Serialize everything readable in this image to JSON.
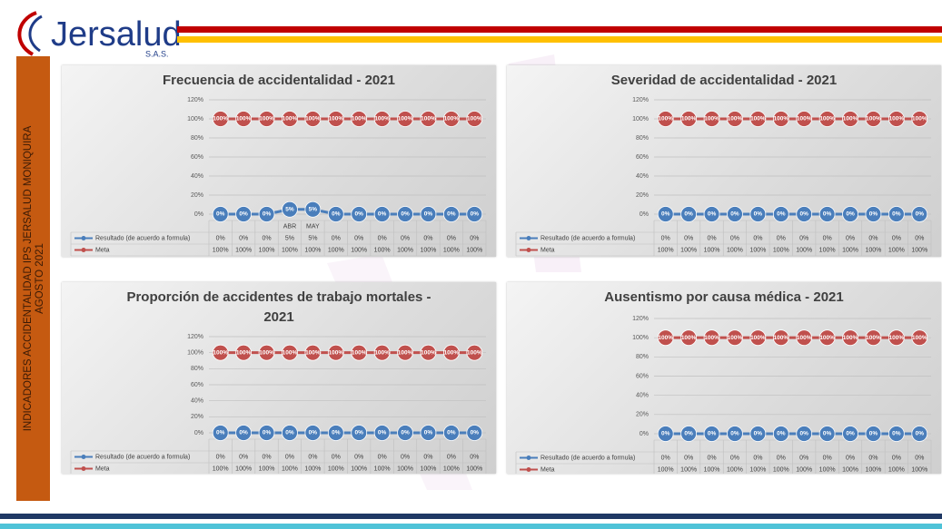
{
  "header": {
    "logo": "Jersalud",
    "logo_sub": "S.A.S.",
    "side_title": "INDICADORES ACCIDENTALIDAD IPS JERSALUD MONIQUIRA",
    "side_subtitle": "AGOSTO  2021"
  },
  "chart_data": [
    {
      "type": "line",
      "title": "Frecuencia de accidentalidad - 2021",
      "categories": [
        null,
        null,
        null,
        "ABR",
        "MAY",
        null,
        null,
        null,
        null,
        null,
        null,
        null
      ],
      "series": [
        {
          "name": "Resultado (de acuerdo a formula)",
          "color": "#4a7ebb",
          "values": [
            0,
            0,
            0,
            5,
            5,
            0,
            0,
            0,
            0,
            0,
            0,
            0
          ],
          "value_labels": [
            "0%",
            "0%",
            "0%",
            "5%",
            "5%",
            "0%",
            "0%",
            "0%",
            "0%",
            "0%",
            "0%",
            "0%"
          ]
        },
        {
          "name": "Meta",
          "color": "#c0504d",
          "values": [
            100,
            100,
            100,
            100,
            100,
            100,
            100,
            100,
            100,
            100,
            100,
            100
          ],
          "value_labels": [
            "100%",
            "100%",
            "100%",
            "100%",
            "100%",
            "100%",
            "100%",
            "100%",
            "100%",
            "100%",
            "100%",
            "100%"
          ]
        }
      ],
      "ylim": [
        0,
        120
      ],
      "yticks": [
        {
          "value": 0,
          "label": "0%"
        },
        {
          "value": 20,
          "label": "20%"
        },
        {
          "value": 40,
          "label": "40%"
        },
        {
          "value": 60,
          "label": "60%"
        },
        {
          "value": 80,
          "label": "80%"
        },
        {
          "value": 100,
          "label": "100%"
        },
        {
          "value": 120,
          "label": "120%"
        }
      ],
      "grid": true
    },
    {
      "type": "line",
      "title": "Severidad de accidentalidad - 2021",
      "categories": [
        null,
        null,
        null,
        null,
        null,
        null,
        null,
        null,
        null,
        null,
        null,
        null
      ],
      "series": [
        {
          "name": "Resultado (de acuerdo a formula)",
          "color": "#4a7ebb",
          "values": [
            0,
            0,
            0,
            0,
            0,
            0,
            0,
            0,
            0,
            0,
            0,
            0
          ],
          "value_labels": [
            "0%",
            "0%",
            "0%",
            "0%",
            "0%",
            "0%",
            "0%",
            "0%",
            "0%",
            "0%",
            "0%",
            "0%"
          ]
        },
        {
          "name": "Meta",
          "color": "#c0504d",
          "values": [
            100,
            100,
            100,
            100,
            100,
            100,
            100,
            100,
            100,
            100,
            100,
            100
          ],
          "value_labels": [
            "100%",
            "100%",
            "100%",
            "100%",
            "100%",
            "100%",
            "100%",
            "100%",
            "100%",
            "100%",
            "100%",
            "100%"
          ]
        }
      ],
      "ylim": [
        0,
        120
      ],
      "yticks": [
        {
          "value": 0,
          "label": "0%"
        },
        {
          "value": 20,
          "label": "20%"
        },
        {
          "value": 40,
          "label": "40%"
        },
        {
          "value": 60,
          "label": "60%"
        },
        {
          "value": 80,
          "label": "80%"
        },
        {
          "value": 100,
          "label": "100%"
        },
        {
          "value": 120,
          "label": "120%"
        }
      ],
      "grid": true
    },
    {
      "type": "line",
      "title": "Proporción de accidentes de trabajo mortales - 2021",
      "categories": [
        null,
        null,
        null,
        null,
        null,
        null,
        null,
        null,
        null,
        null,
        null,
        null
      ],
      "series": [
        {
          "name": "Resultado (de acuerdo a formula)",
          "color": "#4a7ebb",
          "values": [
            0,
            0,
            0,
            0,
            0,
            0,
            0,
            0,
            0,
            0,
            0,
            0
          ],
          "value_labels": [
            "0%",
            "0%",
            "0%",
            "0%",
            "0%",
            "0%",
            "0%",
            "0%",
            "0%",
            "0%",
            "0%",
            "0%"
          ]
        },
        {
          "name": "Meta",
          "color": "#c0504d",
          "values": [
            100,
            100,
            100,
            100,
            100,
            100,
            100,
            100,
            100,
            100,
            100,
            100
          ],
          "value_labels": [
            "100%",
            "100%",
            "100%",
            "100%",
            "100%",
            "100%",
            "100%",
            "100%",
            "100%",
            "100%",
            "100%",
            "100%"
          ]
        }
      ],
      "ylim": [
        0,
        120
      ],
      "yticks": [
        {
          "value": 0,
          "label": "0%"
        },
        {
          "value": 20,
          "label": "20%"
        },
        {
          "value": 40,
          "label": "40%"
        },
        {
          "value": 60,
          "label": "60%"
        },
        {
          "value": 80,
          "label": "80%"
        },
        {
          "value": 100,
          "label": "100%"
        },
        {
          "value": 120,
          "label": "120%"
        }
      ],
      "grid": true
    },
    {
      "type": "line",
      "title": "Ausentismo por causa médica -  2021",
      "categories": [
        null,
        null,
        null,
        null,
        null,
        null,
        null,
        null,
        null,
        null,
        null,
        null
      ],
      "series": [
        {
          "name": "Resultado (de acuerdo a formula)",
          "color": "#4a7ebb",
          "values": [
            0,
            0,
            0,
            0,
            0,
            0,
            0,
            0,
            0,
            0,
            0,
            0
          ],
          "value_labels": [
            "0%",
            "0%",
            "0%",
            "0%",
            "0%",
            "0%",
            "0%",
            "0%",
            "0%",
            "0%",
            "0%",
            "0%"
          ]
        },
        {
          "name": "Meta",
          "color": "#c0504d",
          "values": [
            100,
            100,
            100,
            100,
            100,
            100,
            100,
            100,
            100,
            100,
            100,
            100
          ],
          "value_labels": [
            "100%",
            "100%",
            "100%",
            "100%",
            "100%",
            "100%",
            "100%",
            "100%",
            "100%",
            "100%",
            "100%",
            "100%"
          ]
        }
      ],
      "ylim": [
        0,
        120
      ],
      "yticks": [
        {
          "value": 0,
          "label": "0%"
        },
        {
          "value": 20,
          "label": "20%"
        },
        {
          "value": 40,
          "label": "40%"
        },
        {
          "value": 60,
          "label": "60%"
        },
        {
          "value": 80,
          "label": "80%"
        },
        {
          "value": 100,
          "label": "100%"
        },
        {
          "value": 120,
          "label": "120%"
        }
      ],
      "grid": true
    }
  ]
}
